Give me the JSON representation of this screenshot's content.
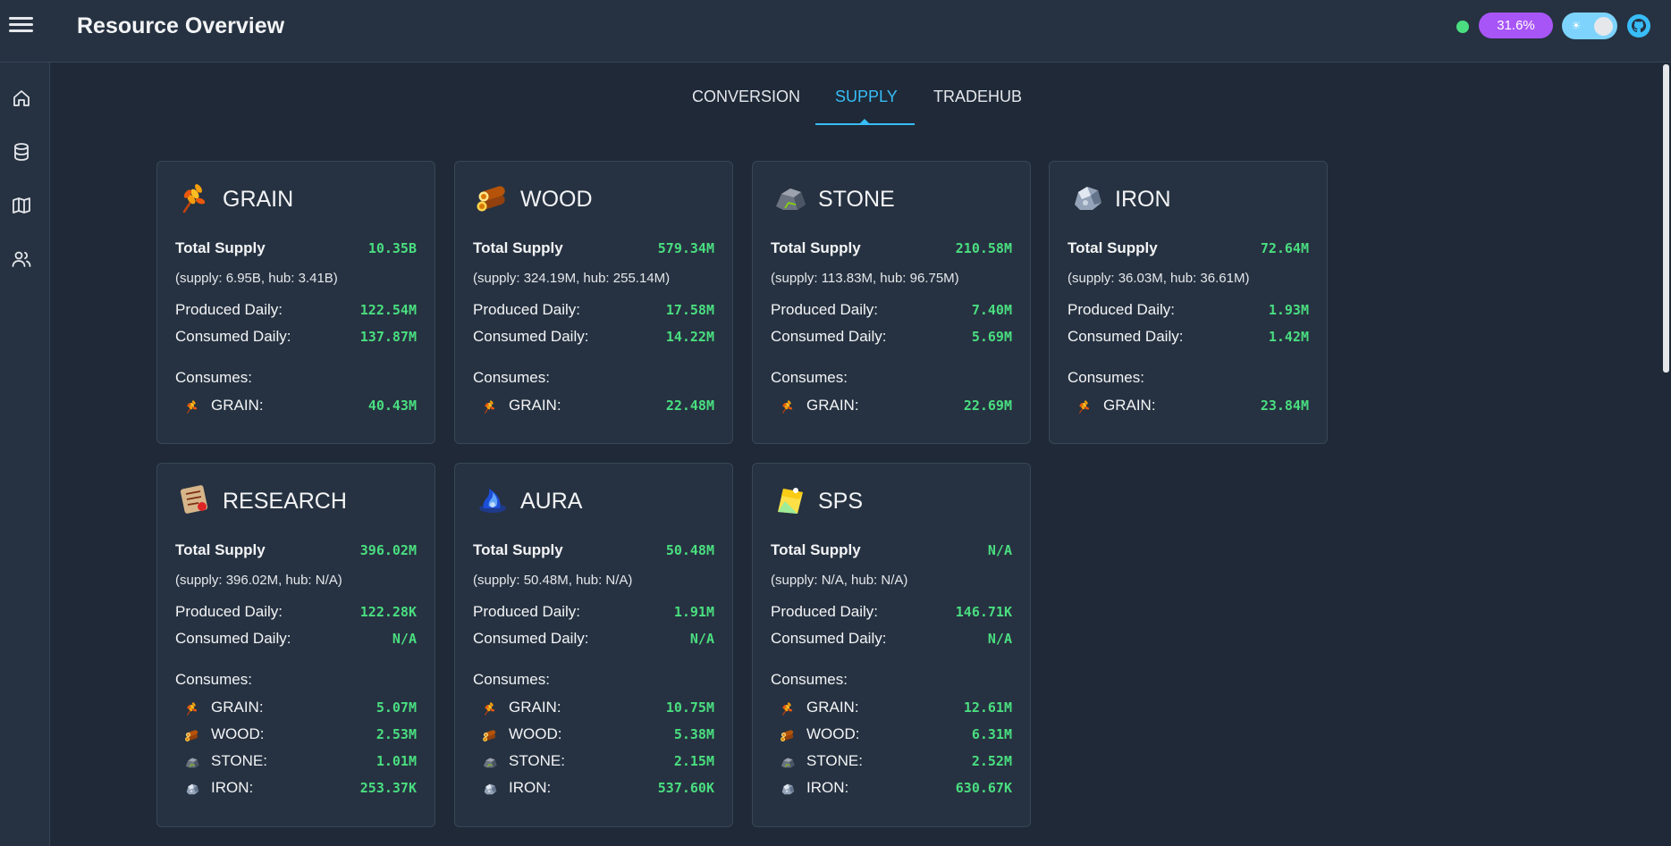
{
  "header": {
    "title": "Resource Overview",
    "percent_badge": "31.6%"
  },
  "icons": {
    "menu": "hamburger-icon",
    "theme": "sun-icon",
    "repo": "github-icon"
  },
  "sidebar": {
    "items": [
      "home-icon",
      "database-icon",
      "map-icon",
      "users-icon"
    ]
  },
  "tabs": [
    "CONVERSION",
    "SUPPLY",
    "TRADEHUB"
  ],
  "active_tab": "SUPPLY",
  "labels": {
    "total_supply": "Total Supply",
    "produced_daily": "Produced Daily:",
    "consumed_daily": "Consumed Daily:",
    "consumes": "Consumes:"
  },
  "colors": {
    "accent": "#38bdf8",
    "value": "#4ade80",
    "badge": "#a855f7",
    "status": "#4ade80"
  },
  "resources": [
    {
      "name": "GRAIN",
      "icon": "grain-icon",
      "total": "10.35B",
      "breakdown": "(supply: 6.95B, hub: 3.41B)",
      "produced": "122.54M",
      "consumed": "137.87M",
      "consumes": [
        {
          "name": "GRAIN:",
          "icon": "grain-icon",
          "value": "40.43M"
        }
      ]
    },
    {
      "name": "WOOD",
      "icon": "wood-icon",
      "total": "579.34M",
      "breakdown": "(supply: 324.19M, hub: 255.14M)",
      "produced": "17.58M",
      "consumed": "14.22M",
      "consumes": [
        {
          "name": "GRAIN:",
          "icon": "grain-icon",
          "value": "22.48M"
        }
      ]
    },
    {
      "name": "STONE",
      "icon": "stone-icon",
      "total": "210.58M",
      "breakdown": "(supply: 113.83M, hub: 96.75M)",
      "produced": "7.40M",
      "consumed": "5.69M",
      "consumes": [
        {
          "name": "GRAIN:",
          "icon": "grain-icon",
          "value": "22.69M"
        }
      ]
    },
    {
      "name": "IRON",
      "icon": "iron-icon",
      "total": "72.64M",
      "breakdown": "(supply: 36.03M, hub: 36.61M)",
      "produced": "1.93M",
      "consumed": "1.42M",
      "consumes": [
        {
          "name": "GRAIN:",
          "icon": "grain-icon",
          "value": "23.84M"
        }
      ]
    },
    {
      "name": "RESEARCH",
      "icon": "research-icon",
      "total": "396.02M",
      "breakdown": "(supply: 396.02M, hub: N/A)",
      "produced": "122.28K",
      "consumed": "N/A",
      "consumes": [
        {
          "name": "GRAIN:",
          "icon": "grain-icon",
          "value": "5.07M"
        },
        {
          "name": "WOOD:",
          "icon": "wood-icon",
          "value": "2.53M"
        },
        {
          "name": "STONE:",
          "icon": "stone-icon",
          "value": "1.01M"
        },
        {
          "name": "IRON:",
          "icon": "iron-icon",
          "value": "253.37K"
        }
      ]
    },
    {
      "name": "AURA",
      "icon": "aura-icon",
      "total": "50.48M",
      "breakdown": "(supply: 50.48M, hub: N/A)",
      "produced": "1.91M",
      "consumed": "N/A",
      "consumes": [
        {
          "name": "GRAIN:",
          "icon": "grain-icon",
          "value": "10.75M"
        },
        {
          "name": "WOOD:",
          "icon": "wood-icon",
          "value": "5.38M"
        },
        {
          "name": "STONE:",
          "icon": "stone-icon",
          "value": "2.15M"
        },
        {
          "name": "IRON:",
          "icon": "iron-icon",
          "value": "537.60K"
        }
      ]
    },
    {
      "name": "SPS",
      "icon": "sps-icon",
      "total": "N/A",
      "breakdown": "(supply: N/A, hub: N/A)",
      "produced": "146.71K",
      "consumed": "N/A",
      "consumes": [
        {
          "name": "GRAIN:",
          "icon": "grain-icon",
          "value": "12.61M"
        },
        {
          "name": "WOOD:",
          "icon": "wood-icon",
          "value": "6.31M"
        },
        {
          "name": "STONE:",
          "icon": "stone-icon",
          "value": "2.52M"
        },
        {
          "name": "IRON:",
          "icon": "iron-icon",
          "value": "630.67K"
        }
      ]
    }
  ]
}
